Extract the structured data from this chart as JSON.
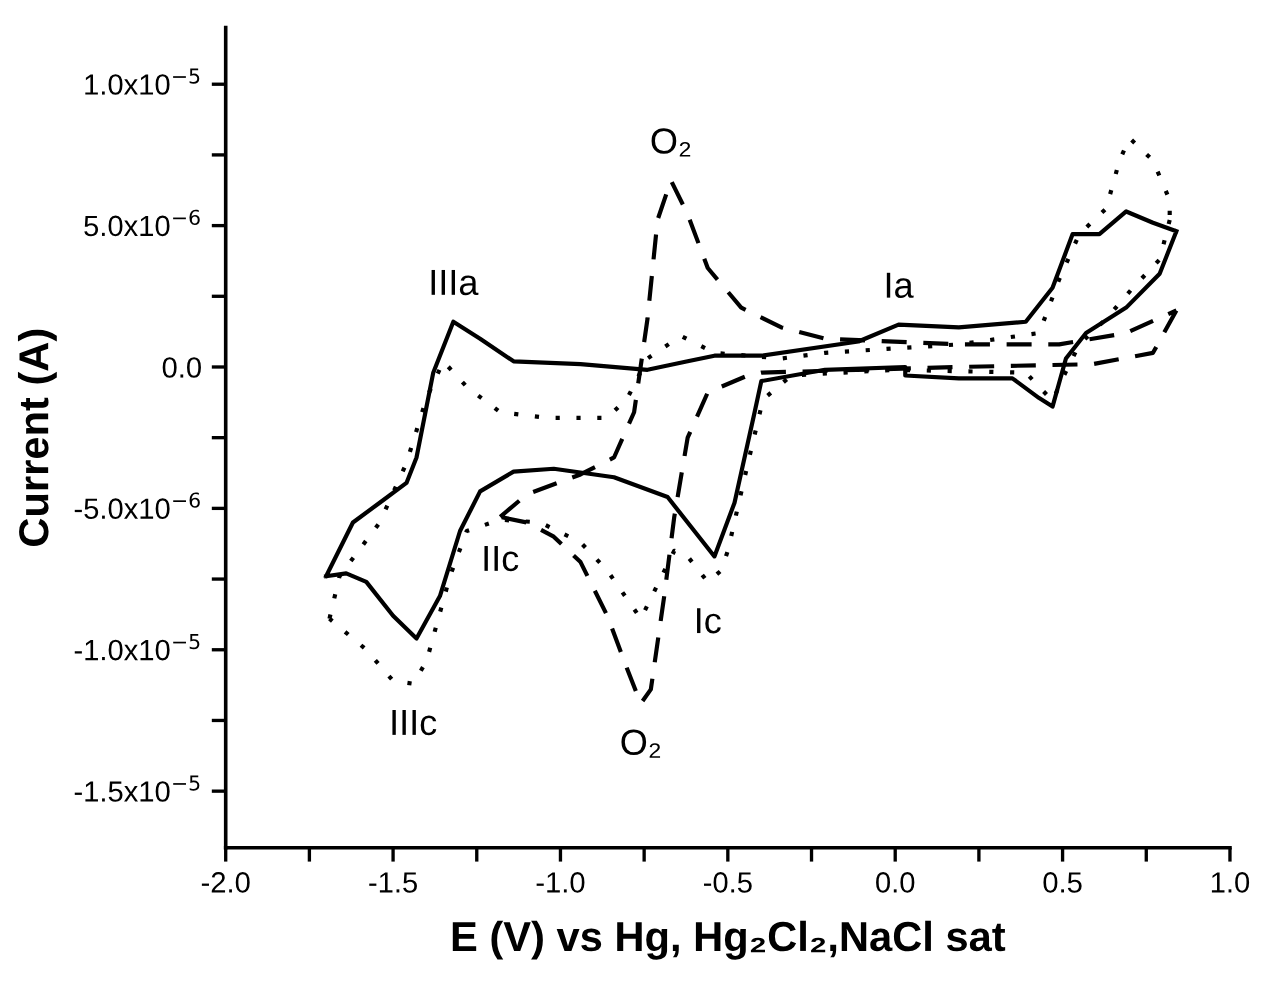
{
  "chart_data": {
    "type": "line",
    "xlabel": "E (V) vs Hg, Hg₂Cl₂,NaCl sat",
    "ylabel": "Current (A)",
    "xlim": [
      -2.0,
      1.0
    ],
    "ylim": [
      -1.7e-05,
      1.2e-05
    ],
    "xticks": [
      {
        "value": -2.0,
        "label": "-2.0"
      },
      {
        "value": -1.75,
        "label": null
      },
      {
        "value": -1.5,
        "label": "-1.5"
      },
      {
        "value": -1.25,
        "label": null
      },
      {
        "value": -1.0,
        "label": "-1.0"
      },
      {
        "value": -0.75,
        "label": null
      },
      {
        "value": -0.5,
        "label": "-0.5"
      },
      {
        "value": -0.25,
        "label": null
      },
      {
        "value": 0.0,
        "label": "0.0"
      },
      {
        "value": 0.25,
        "label": null
      },
      {
        "value": 0.5,
        "label": "0.5"
      },
      {
        "value": 0.75,
        "label": null
      },
      {
        "value": 1.0,
        "label": "1.0"
      }
    ],
    "yticks": [
      {
        "value": -1.5e-05,
        "label": "-1.5x10$^{−5}$"
      },
      {
        "value": -1.25e-05,
        "label": null
      },
      {
        "value": -1e-05,
        "label": "-1.0x10$^{−5}$"
      },
      {
        "value": -7.5e-06,
        "label": null
      },
      {
        "value": -5e-06,
        "label": "-5.0x10$^{−6}$"
      },
      {
        "value": -2.5e-06,
        "label": null
      },
      {
        "value": 0.0,
        "label": "0.0"
      },
      {
        "value": 2.5e-06,
        "label": null
      },
      {
        "value": 5e-06,
        "label": "5.0x10$^{−6}$"
      },
      {
        "value": 7.5e-06,
        "label": null
      },
      {
        "value": 1e-05,
        "label": "1.0x10$^{−5}$"
      }
    ],
    "grid": false,
    "legend": false,
    "marker": "none",
    "series": [
      {
        "color": "#000000",
        "line_style": "solid",
        "x": [
          -1.7,
          -1.62,
          -1.54,
          -1.46,
          -1.43,
          -1.38,
          -1.32,
          -1.24,
          -1.14,
          -0.94,
          -0.74,
          -0.62,
          -0.54,
          -0.4,
          -0.11,
          0.01,
          0.19,
          0.39,
          0.47,
          0.53,
          0.61,
          0.69,
          0.77,
          0.84,
          null,
          0.84,
          0.79,
          0.69,
          0.57,
          0.51,
          0.47,
          0.43,
          0.35,
          0.19,
          0.03,
          0.03,
          -0.21,
          -0.4,
          -0.42,
          -0.48,
          -0.54,
          -0.6,
          -0.68,
          -0.84,
          -1.02,
          -1.14,
          -1.24,
          -1.3,
          -1.36,
          -1.43,
          -1.5,
          -1.58,
          -1.64,
          -1.7
        ],
        "values": [
          -7.4e-06,
          -5.5e-06,
          -4.8e-06,
          -4.1e-06,
          -3.2e-06,
          -2e-07,
          1.6e-06,
          1e-06,
          2e-07,
          1e-07,
          -1e-07,
          2e-07,
          4e-07,
          4e-07,
          9e-07,
          1.5e-06,
          1.4e-06,
          1.6e-06,
          2.8e-06,
          4.7e-06,
          4.7e-06,
          5.5e-06,
          5.1e-06,
          4.8e-06,
          null,
          4.8e-06,
          3.3e-06,
          2.1e-06,
          1.2e-06,
          3e-07,
          -1.4e-06,
          -1.1e-06,
          -4e-07,
          -4e-07,
          -3e-07,
          0.0,
          -1e-07,
          -5e-07,
          -1.6e-06,
          -4.8e-06,
          -6.7e-06,
          -5.8e-06,
          -4.6e-06,
          -3.9e-06,
          -3.6e-06,
          -3.7e-06,
          -4.4e-06,
          -5.8e-06,
          -8.1e-06,
          -9.6e-06,
          -8.8e-06,
          -7.6e-06,
          -7.3e-06,
          -7.4e-06
        ]
      },
      {
        "color": "#000000",
        "line_style": "dashed",
        "x": [
          -1.18,
          -1.1,
          -0.94,
          -0.84,
          -0.78,
          -0.74,
          -0.71,
          -0.67,
          -0.62,
          -0.56,
          -0.46,
          -0.34,
          -0.21,
          0.19,
          0.49,
          0.69,
          0.84,
          null,
          0.84,
          0.77,
          0.59,
          0.19,
          -0.4,
          -0.44,
          -0.56,
          -0.62,
          -0.66,
          -0.69,
          -0.73,
          -0.76,
          -0.8,
          -0.86,
          -0.94,
          -1.02,
          -1.1,
          -1.18
        ],
        "values": [
          -5.3e-06,
          -4.5e-06,
          -3.8e-06,
          -3.2e-06,
          -1.6e-06,
          1.7e-06,
          5.2e-06,
          6.6e-06,
          5.4e-06,
          3.5e-06,
          2.1e-06,
          1.4e-06,
          1e-06,
          8e-07,
          8e-07,
          1.2e-06,
          2e-06,
          null,
          2e-06,
          5e-07,
          1e-07,
          0.0,
          -2e-07,
          -3e-07,
          -9e-07,
          -2.5e-06,
          -5.3e-06,
          -8.1e-06,
          -1.14e-05,
          -1.19e-05,
          -1.07e-05,
          -8.8e-06,
          -6.9e-06,
          -6e-06,
          -5.5e-06,
          -5.3e-06
        ]
      },
      {
        "color": "#000000",
        "line_style": "dotted",
        "x": [
          -1.69,
          -1.66,
          -1.54,
          -1.46,
          -1.4,
          -1.35,
          -1.28,
          -1.18,
          -1.04,
          -0.86,
          -0.8,
          -0.74,
          -0.64,
          -0.54,
          -0.34,
          -0.21,
          0.19,
          0.43,
          0.49,
          0.55,
          0.63,
          0.67,
          0.7,
          0.77,
          0.82,
          0.82,
          null,
          0.82,
          0.79,
          0.71,
          0.63,
          0.55,
          0.5,
          0.47,
          0.39,
          0.0,
          -0.31,
          -0.39,
          -0.4,
          -0.44,
          -0.5,
          -0.52,
          -0.56,
          -0.62,
          -0.66,
          -0.76,
          -0.86,
          -0.94,
          -1.06,
          -1.18,
          -1.28,
          -1.33,
          -1.4,
          -1.44,
          -1.5,
          -1.58,
          -1.69
        ],
        "values": [
          -8.9e-06,
          -7.4e-06,
          -5.5e-06,
          -3.4e-06,
          -1.1e-06,
          2e-07,
          -7e-07,
          -1.6e-06,
          -1.8e-06,
          -1.8e-06,
          -1.1e-06,
          3e-07,
          1.1e-06,
          5e-07,
          3e-07,
          5e-07,
          8e-07,
          1.2e-06,
          3.1e-06,
          4.7e-06,
          5.6e-06,
          7.3e-06,
          8.1e-06,
          7.3e-06,
          5.9e-06,
          5.2e-06,
          null,
          5.2e-06,
          3.8e-06,
          2.8e-06,
          1.7e-06,
          8e-07,
          -4e-07,
          -1.2e-06,
          -2e-07,
          -1e-07,
          -3e-07,
          -1.1e-06,
          -1.4e-06,
          -3.4e-06,
          -6.5e-06,
          -7.2e-06,
          -7.6e-06,
          -6.7e-06,
          -6.5e-06,
          -8.9e-06,
          -7.2e-06,
          -6.2e-06,
          -5.5e-06,
          -5.4e-06,
          -5.8e-06,
          -7.4e-06,
          -1.04e-05,
          -1.12e-05,
          -1.11e-05,
          -1e-05,
          -8.9e-06
        ]
      }
    ],
    "annotations": [
      {
        "text": "IIIa",
        "x": -1.32,
        "y": 1.6e-06
      },
      {
        "text": "O₂",
        "x": -0.67,
        "y": 6.6e-06
      },
      {
        "text": "Ia",
        "x": 0.01,
        "y": 1.5e-06
      },
      {
        "text": "IIc",
        "x": -1.18,
        "y": -5.4e-06
      },
      {
        "text": "Ic",
        "x": -0.56,
        "y": -7.6e-06
      },
      {
        "text": "IIIc",
        "x": -1.44,
        "y": -1.12e-05
      },
      {
        "text": "O₂",
        "x": -0.76,
        "y": -1.19e-05
      }
    ]
  }
}
